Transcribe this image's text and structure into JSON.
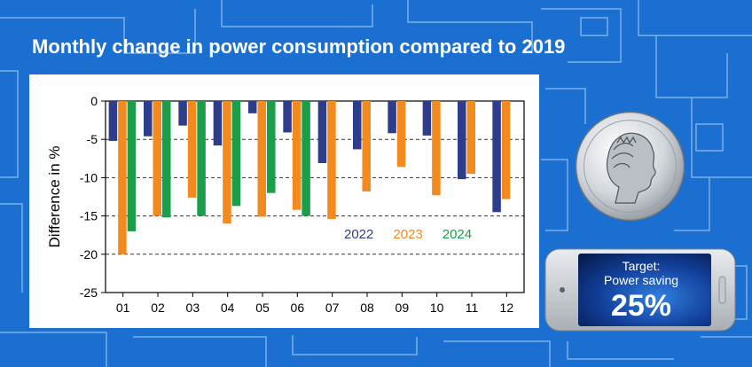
{
  "header": {
    "title": "Monthly change in power consumption compared to 2019"
  },
  "colors": {
    "background": "#1a6fd0",
    "series_2022": "#2e3c8c",
    "series_2023": "#f28a1e",
    "series_2024": "#1a9e4a"
  },
  "badge": {
    "line1": "Target:",
    "line2": "Power saving",
    "value": "25%"
  },
  "logo": {
    "icon": "minerva-medal-icon"
  },
  "chart_data": {
    "type": "bar",
    "title": "",
    "xlabel": "",
    "ylabel": "Difference in %",
    "categories": [
      "01",
      "02",
      "03",
      "04",
      "05",
      "06",
      "07",
      "08",
      "09",
      "10",
      "11",
      "12"
    ],
    "ylim": [
      -25,
      0
    ],
    "yticks": [
      0,
      -5,
      -10,
      -15,
      -20,
      -25
    ],
    "grid": "dashed-horizontal",
    "legend": "inside-lower-right",
    "series": [
      {
        "name": "2022",
        "color": "#2e3c8c",
        "values": [
          -5.2,
          -4.6,
          -3.2,
          -5.8,
          -1.6,
          -4.1,
          -8.1,
          -6.3,
          -4.2,
          -4.5,
          -10.2,
          -14.5
        ]
      },
      {
        "name": "2023",
        "color": "#f28a1e",
        "values": [
          -20.0,
          -15.0,
          -12.6,
          -16.0,
          -15.1,
          -14.2,
          -15.4,
          -11.8,
          -8.6,
          -12.3,
          -9.5,
          -12.8
        ]
      },
      {
        "name": "2024",
        "color": "#1a9e4a",
        "values": [
          -17.0,
          -15.2,
          -15.0,
          -13.7,
          -12.0,
          -15.0,
          null,
          null,
          null,
          null,
          null,
          null
        ]
      }
    ]
  }
}
